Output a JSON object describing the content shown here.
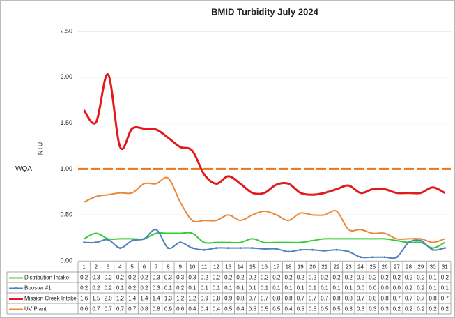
{
  "chart_data": {
    "type": "line",
    "title": "BMID Turbidity July 2024",
    "y_label": "NTU",
    "categories": [
      "1",
      "2",
      "3",
      "4",
      "5",
      "6",
      "7",
      "8",
      "9",
      "10",
      "11",
      "12",
      "13",
      "14",
      "15",
      "16",
      "17",
      "18",
      "19",
      "20",
      "21",
      "22",
      "23",
      "24",
      "25",
      "26",
      "27",
      "28",
      "29",
      "30",
      "31"
    ],
    "ylim": [
      0,
      2.5
    ],
    "yticks": [
      {
        "value": 0,
        "label": "0.00"
      },
      {
        "value": 0.5,
        "label": "0.50"
      },
      {
        "value": 1,
        "label": "1.00"
      },
      {
        "value": 1.5,
        "label": "1.50"
      },
      {
        "value": 2,
        "label": "2.00"
      },
      {
        "value": 2.5,
        "label": "2.50"
      }
    ],
    "grid": true,
    "reference_line": {
      "label": "WQA",
      "value": 1,
      "color": "#e8761e",
      "label_color": "#f2b21a"
    },
    "series": [
      {
        "name": "Distribution Intake",
        "color": "#33cc33",
        "values": [
          0.24,
          0.3,
          0.24,
          0.24,
          0.24,
          0.24,
          0.3,
          0.3,
          0.3,
          0.3,
          0.2,
          0.2,
          0.2,
          0.2,
          0.24,
          0.2,
          0.2,
          0.2,
          0.2,
          0.22,
          0.24,
          0.24,
          0.24,
          0.24,
          0.24,
          0.24,
          0.22,
          0.2,
          0.2,
          0.14,
          0.2
        ],
        "value_labels": [
          "0.2",
          "0.3",
          "0.2",
          "0.2",
          "0.2",
          "0.2",
          "0.3",
          "0.3",
          "0.3",
          "0.3",
          "0.2",
          "0.2",
          "0.2",
          "0.2",
          "0.2",
          "0.2",
          "0.2",
          "0.2",
          "0.2",
          "0.2",
          "0.2",
          "0.2",
          "0.2",
          "0.2",
          "0.2",
          "0.2",
          "0.2",
          "0.2",
          "0.2",
          "0.1",
          "0.2"
        ]
      },
      {
        "name": "Booster #1",
        "color": "#4f81bd",
        "values": [
          0.2,
          0.2,
          0.23,
          0.14,
          0.22,
          0.24,
          0.34,
          0.14,
          0.2,
          0.14,
          0.12,
          0.14,
          0.14,
          0.14,
          0.14,
          0.13,
          0.13,
          0.1,
          0.12,
          0.12,
          0.11,
          0.12,
          0.1,
          0.04,
          0.04,
          0.04,
          0.04,
          0.2,
          0.22,
          0.12,
          0.14
        ],
        "value_labels": [
          "0.2",
          "0.2",
          "0.2",
          "0.1",
          "0.2",
          "0.2",
          "0.3",
          "0.1",
          "0.2",
          "0.1",
          "0.1",
          "0.1",
          "0.1",
          "0.1",
          "0.1",
          "0.1",
          "0.1",
          "0.1",
          "0.1",
          "0.1",
          "0.1",
          "0.1",
          "0.1",
          "0.0",
          "0.0",
          "0.0",
          "0.0",
          "0.2",
          "0.2",
          "0.1",
          "0.1"
        ]
      },
      {
        "name": "Mission Creek Intake",
        "color": "#e31a1c",
        "values": [
          1.64,
          1.51,
          2.03,
          1.24,
          1.44,
          1.44,
          1.43,
          1.34,
          1.24,
          1.2,
          0.94,
          0.84,
          0.92,
          0.84,
          0.74,
          0.74,
          0.83,
          0.84,
          0.74,
          0.72,
          0.74,
          0.78,
          0.82,
          0.74,
          0.78,
          0.78,
          0.74,
          0.74,
          0.74,
          0.8,
          0.74
        ],
        "value_labels": [
          "1.6",
          "1.5",
          "2.0",
          "1.2",
          "1.4",
          "1.4",
          "1.4",
          "1.3",
          "1.2",
          "1.2",
          "0.9",
          "0.8",
          "0.9",
          "0.8",
          "0.7",
          "0.7",
          "0.8",
          "0.8",
          "0.7",
          "0.7",
          "0.7",
          "0.8",
          "0.8",
          "0.7",
          "0.8",
          "0.8",
          "0.7",
          "0.7",
          "0.7",
          "0.8",
          "0.7"
        ]
      },
      {
        "name": "UV Plant",
        "color": "#e8883a",
        "values": [
          0.64,
          0.7,
          0.72,
          0.74,
          0.74,
          0.84,
          0.84,
          0.9,
          0.64,
          0.44,
          0.44,
          0.44,
          0.5,
          0.44,
          0.5,
          0.54,
          0.5,
          0.44,
          0.52,
          0.5,
          0.5,
          0.54,
          0.34,
          0.34,
          0.3,
          0.3,
          0.24,
          0.24,
          0.24,
          0.2,
          0.24
        ],
        "value_labels": [
          "0.6",
          "0.7",
          "0.7",
          "0.7",
          "0.7",
          "0.8",
          "0.8",
          "0.9",
          "0.6",
          "0.4",
          "0.4",
          "0.4",
          "0.5",
          "0.4",
          "0.5",
          "0.5",
          "0.5",
          "0.4",
          "0.5",
          "0.5",
          "0.5",
          "0.5",
          "0.3",
          "0.3",
          "0.3",
          "0.3",
          "0.2",
          "0.2",
          "0.2",
          "0.2",
          "0.2"
        ]
      }
    ]
  }
}
